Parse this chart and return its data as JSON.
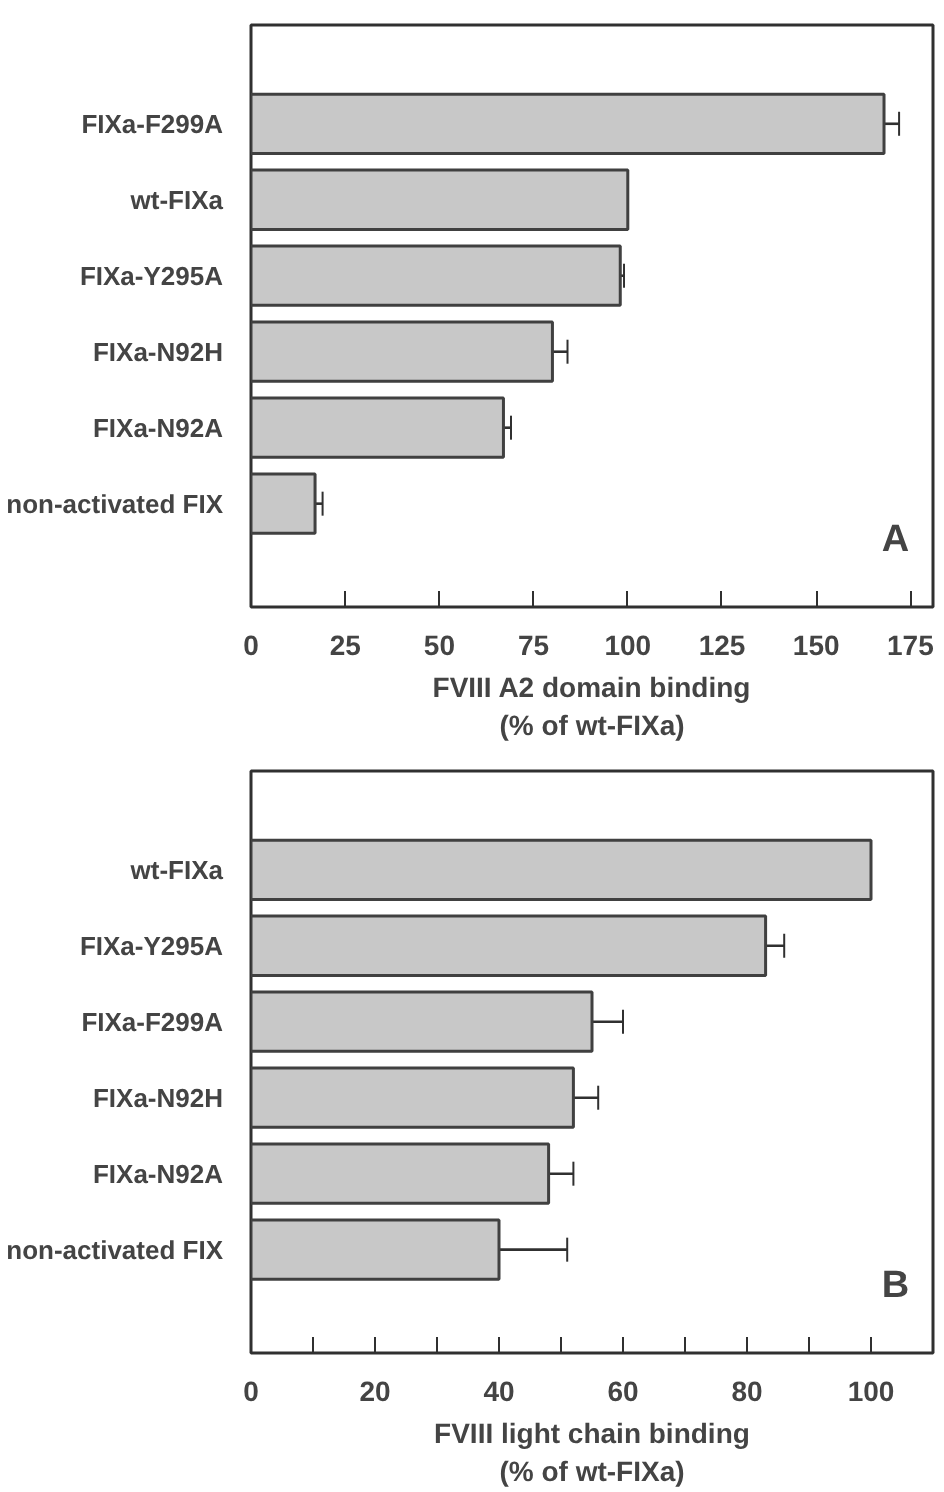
{
  "chart_data": [
    {
      "type": "bar",
      "orientation": "horizontal",
      "categories": [
        "FIXa-F299A",
        "wt-FIXa",
        "FIXa-Y295A",
        "FIXa-N92H",
        "FIXa-N92A",
        "non-activated FIX"
      ],
      "values": [
        168,
        100,
        98,
        80,
        67,
        17
      ],
      "errors": [
        4,
        null,
        1,
        4,
        2,
        2
      ],
      "color": "#c8c8c8",
      "xlabel": "FVIII A2 domain binding\n(% of wt-FIXa)",
      "xlim": [
        0,
        181
      ],
      "xticks": [
        0,
        25,
        50,
        75,
        100,
        125,
        150,
        175
      ],
      "annotations": [
        "A"
      ],
      "grid": false
    },
    {
      "type": "bar",
      "orientation": "horizontal",
      "categories": [
        "wt-FIXa",
        "FIXa-Y295A",
        "FIXa-F299A",
        "FIXa-N92H",
        "FIXa-N92A",
        "non-activated FIX"
      ],
      "values": [
        100,
        83,
        55,
        52,
        48,
        40
      ],
      "errors": [
        null,
        3,
        5,
        4,
        4,
        11
      ],
      "color": "#c8c8c8",
      "xlabel": "FVIII light chain binding\n(% of wt-FIXa)",
      "xlim": [
        0,
        110
      ],
      "xticks": [
        0,
        {
          "value": 10,
          "label": null
        },
        20,
        {
          "value": 30,
          "label": null
        },
        40,
        {
          "value": 50,
          "label": null
        },
        60,
        {
          "value": 70,
          "label": null
        },
        80,
        {
          "value": 90,
          "label": null
        },
        100
      ],
      "annotations": [
        "B"
      ],
      "grid": false
    }
  ]
}
